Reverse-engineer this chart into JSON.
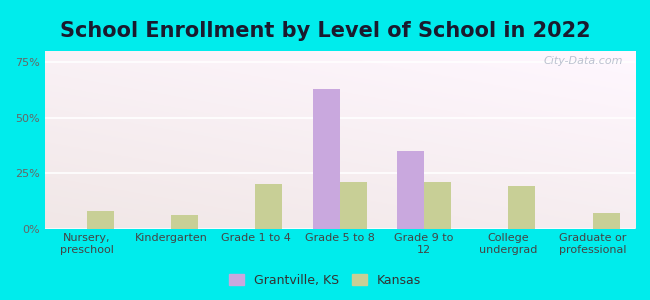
{
  "title": "School Enrollment by Level of School in 2022",
  "categories": [
    "Nursery,\npreschool",
    "Kindergarten",
    "Grade 1 to 4",
    "Grade 5 to 8",
    "Grade 9 to\n12",
    "College\nundergrad",
    "Graduate or\nprofessional"
  ],
  "grantville_values": [
    0,
    0,
    0,
    63,
    35,
    0,
    0
  ],
  "kansas_values": [
    8,
    6,
    20,
    21,
    21,
    19,
    7
  ],
  "grantville_color": "#c9a8de",
  "kansas_color": "#c8cf96",
  "background_color": "#00ecec",
  "ylabel_ticks": [
    "0%",
    "25%",
    "50%",
    "75%"
  ],
  "ytick_values": [
    0,
    25,
    50,
    75
  ],
  "ylim": [
    0,
    80
  ],
  "legend_labels": [
    "Grantville, KS",
    "Kansas"
  ],
  "title_fontsize": 15,
  "tick_fontsize": 8,
  "legend_fontsize": 9,
  "bar_width": 0.32,
  "watermark_text": "City-Data.com"
}
